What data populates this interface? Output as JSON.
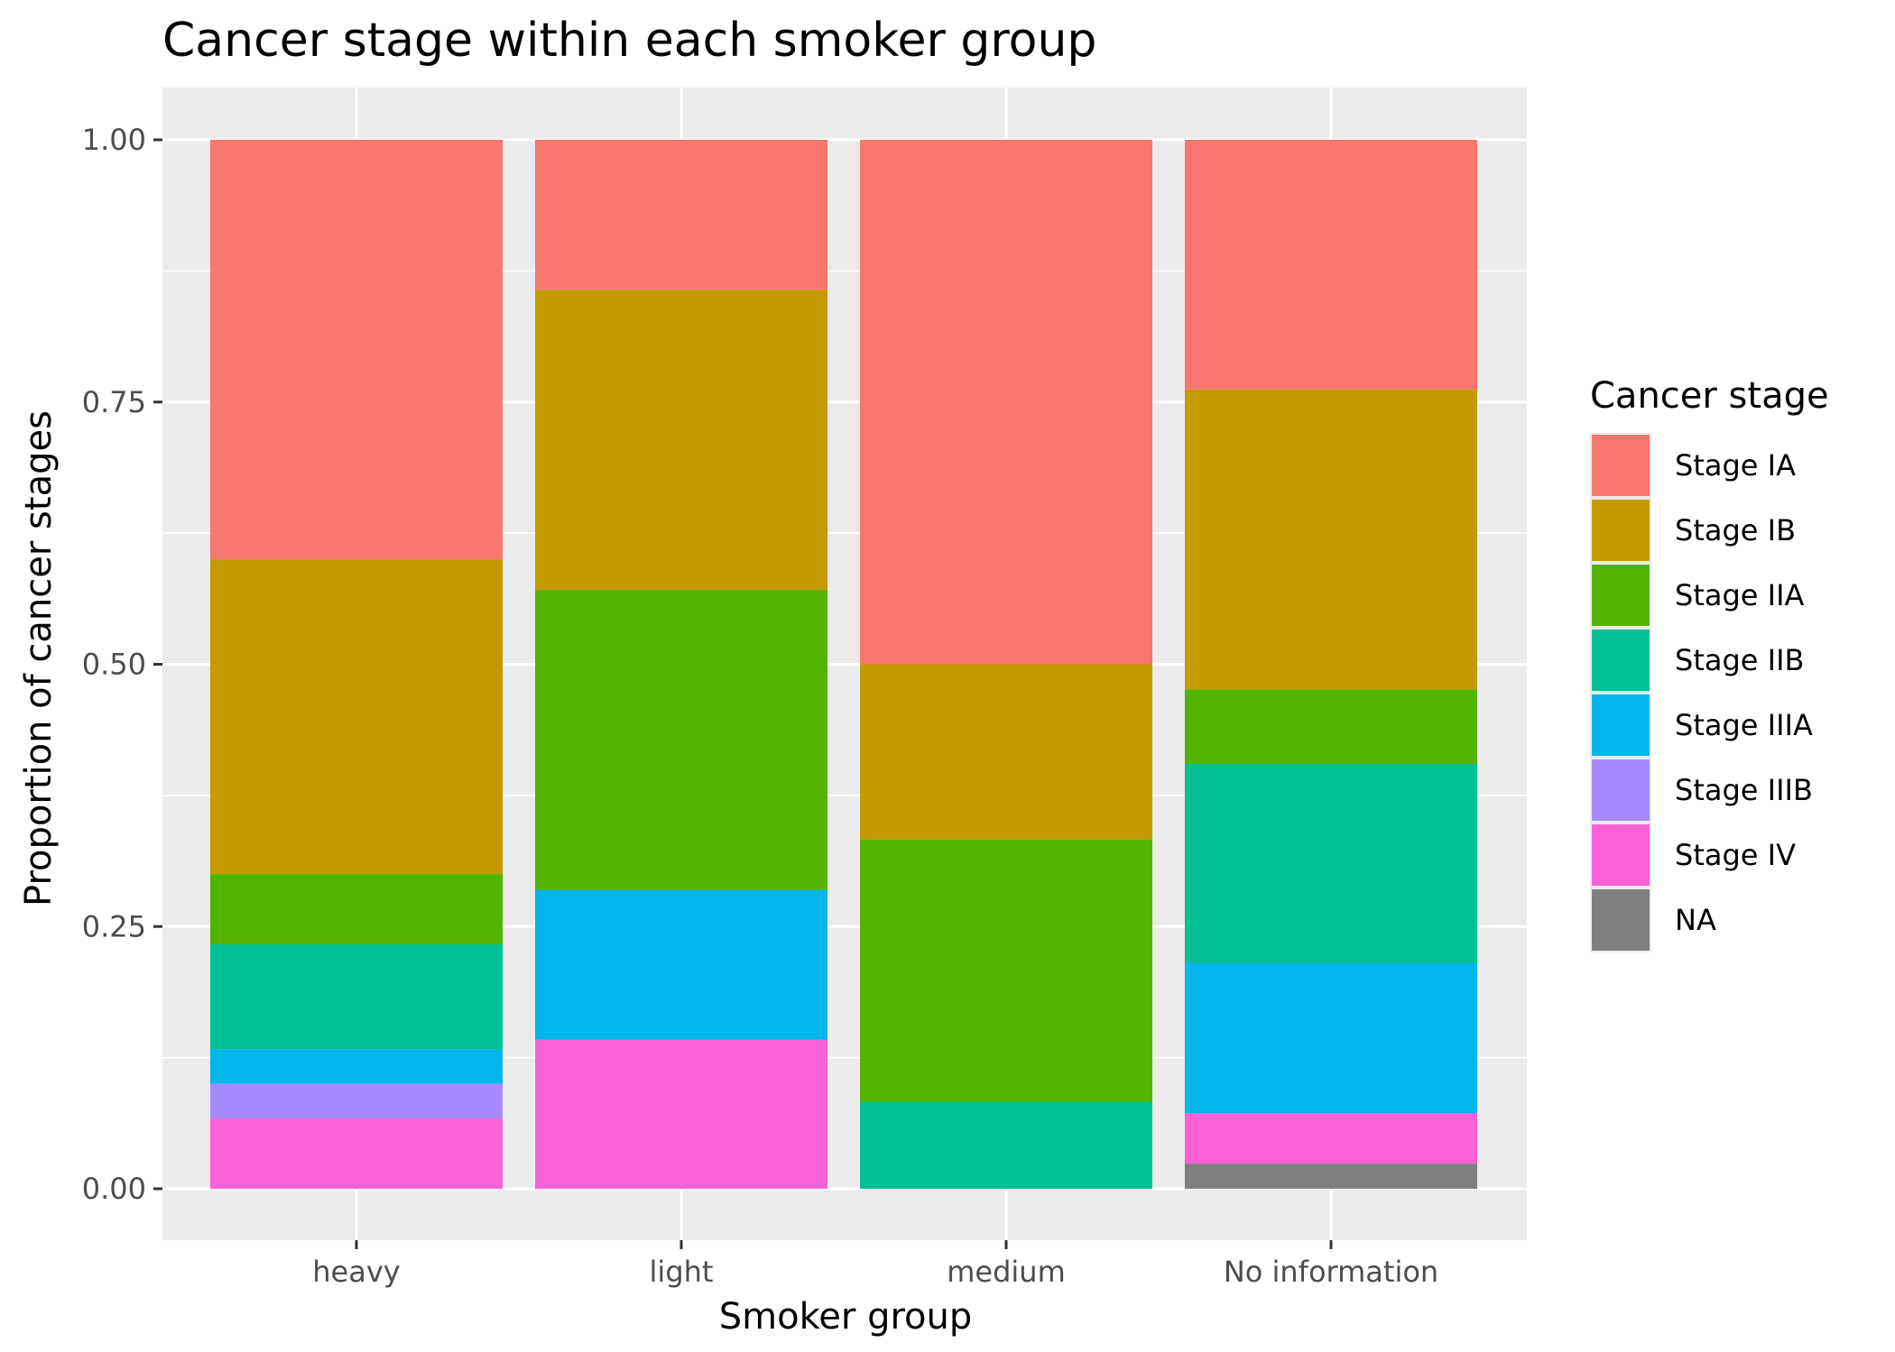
{
  "chart_data": {
    "type": "bar",
    "stacked": true,
    "position": "fill",
    "title": "Cancer stage within each smoker group",
    "xlabel": "Smoker group",
    "ylabel": "Proportion of cancer stages",
    "categories": [
      "heavy",
      "light",
      "medium",
      "No information"
    ],
    "ylim": [
      0,
      1
    ],
    "yticks": [
      "0.00",
      "0.25",
      "0.50",
      "0.75",
      "1.00"
    ],
    "grid": true,
    "legend": {
      "title": "Cancer stage",
      "placement": "right"
    },
    "series": [
      {
        "name": "Stage IA",
        "color": "#F8766D",
        "values": [
          0.4,
          0.143,
          0.5,
          0.238
        ]
      },
      {
        "name": "Stage IB",
        "color": "#C49A00",
        "values": [
          0.3,
          0.286,
          0.167,
          0.286
        ]
      },
      {
        "name": "Stage IIA",
        "color": "#53B400",
        "values": [
          0.067,
          0.286,
          0.25,
          0.071
        ]
      },
      {
        "name": "Stage IIB",
        "color": "#00C094",
        "values": [
          0.1,
          0.0,
          0.083,
          0.19
        ]
      },
      {
        "name": "Stage IIIA",
        "color": "#00B6EB",
        "values": [
          0.033,
          0.143,
          0.0,
          0.143
        ]
      },
      {
        "name": "Stage IIIB",
        "color": "#A58AFF",
        "values": [
          0.033,
          0.0,
          0.0,
          0.0
        ]
      },
      {
        "name": "Stage IV",
        "color": "#FB61D7",
        "values": [
          0.067,
          0.142,
          0.0,
          0.048
        ]
      },
      {
        "name": "NA",
        "color": "#7F7F7F",
        "values": [
          0.0,
          0.0,
          0.0,
          0.024
        ]
      }
    ]
  }
}
